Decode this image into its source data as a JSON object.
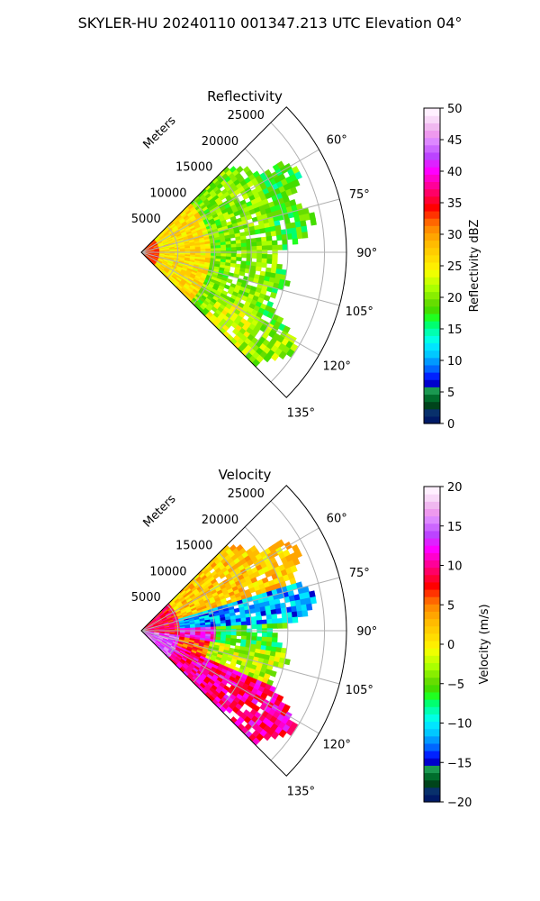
{
  "figure": {
    "suptitle": "SKYLER-HU  20240110  001347.213 UTC Elevation 04°"
  },
  "chart_data": [
    {
      "type": "heatmap",
      "subtype": "polar-sector-ppi",
      "title": "Reflectivity",
      "radial_axis_label": "Meters",
      "radial_ticks": [
        "5000",
        "10000",
        "15000",
        "20000",
        "25000"
      ],
      "radial_tick_values": [
        5000,
        10000,
        15000,
        20000,
        25000
      ],
      "rlim": [
        0,
        28000
      ],
      "angle_ticks": [
        "60°",
        "75°",
        "90°",
        "105°",
        "120°",
        "135°"
      ],
      "angle_tick_values": [
        60,
        75,
        90,
        105,
        120,
        135
      ],
      "theta_range_deg": [
        45,
        135
      ],
      "grid": true,
      "colorbar": {
        "label": "Reflectivity dBZ",
        "ticks": [
          "0",
          "5",
          "10",
          "15",
          "20",
          "25",
          "30",
          "35",
          "40",
          "45",
          "50"
        ],
        "tick_values": [
          0,
          5,
          10,
          15,
          20,
          25,
          30,
          35,
          40,
          45,
          50
        ],
        "vmin": 0,
        "vmax": 50,
        "colors": [
          "#001a66",
          "#08306b",
          "#00441b",
          "#006d2c",
          "#1a9850",
          "#0000cc",
          "#0022ff",
          "#0066ff",
          "#0099ff",
          "#00c8ff",
          "#00e5ff",
          "#00ffe5",
          "#00ffb0",
          "#00ff70",
          "#20ff20",
          "#44dd00",
          "#66dd00",
          "#88ee00",
          "#aaff00",
          "#ccff00",
          "#eeff00",
          "#ffee00",
          "#ffdd00",
          "#ffcc00",
          "#ffbb00",
          "#ffa500",
          "#ff8c00",
          "#ff6600",
          "#ff3300",
          "#ff0000",
          "#ff0033",
          "#ff0066",
          "#ff0099",
          "#ff00cc",
          "#ff00ff",
          "#dd22ff",
          "#bb44ff",
          "#cc66ff",
          "#dd88ff",
          "#ee99ee",
          "#f0b8f0",
          "#f8d8f8",
          "#fff0ff"
        ]
      },
      "field_description_values": {
        "near_range_core_dbz": 35,
        "inner_band_dbz": 26,
        "outer_band_dbz": 20,
        "edge_dbz": 17,
        "max_echo_range_m": 23500
      }
    },
    {
      "type": "heatmap",
      "subtype": "polar-sector-ppi",
      "title": "Velocity",
      "radial_axis_label": "Meters",
      "radial_ticks": [
        "5000",
        "10000",
        "15000",
        "20000",
        "25000"
      ],
      "radial_tick_values": [
        5000,
        10000,
        15000,
        20000,
        25000
      ],
      "rlim": [
        0,
        28000
      ],
      "angle_ticks": [
        "60°",
        "75°",
        "90°",
        "105°",
        "120°",
        "135°"
      ],
      "angle_tick_values": [
        60,
        75,
        90,
        105,
        120,
        135
      ],
      "theta_range_deg": [
        45,
        135
      ],
      "grid": true,
      "colorbar": {
        "label": "Velocity (m/s)",
        "ticks": [
          "−20",
          "−15",
          "−10",
          "−5",
          "0",
          "5",
          "10",
          "15",
          "20"
        ],
        "tick_values": [
          -20,
          -15,
          -10,
          -5,
          0,
          5,
          10,
          15,
          20
        ],
        "vmin": -20,
        "vmax": 20,
        "colors": [
          "#001a66",
          "#08306b",
          "#00441b",
          "#006d2c",
          "#1a9850",
          "#0000cc",
          "#0022ff",
          "#0066ff",
          "#0099ff",
          "#00c8ff",
          "#00e5ff",
          "#00ffe5",
          "#00ffb0",
          "#00ff70",
          "#20ff20",
          "#44dd00",
          "#66dd00",
          "#88ee00",
          "#aaff00",
          "#ccff00",
          "#eeff00",
          "#ffee00",
          "#ffdd00",
          "#ffcc00",
          "#ffbb00",
          "#ffa500",
          "#ff8c00",
          "#ff6600",
          "#ff3300",
          "#ff0000",
          "#ff0033",
          "#ff0066",
          "#ff0099",
          "#ff00cc",
          "#ff00ff",
          "#dd22ff",
          "#bb44ff",
          "#cc66ff",
          "#dd88ff",
          "#ee99ee",
          "#f0b8f0",
          "#f8d8f8",
          "#fff0ff"
        ]
      },
      "field_description_values": {
        "north_sector_velocity_ms": 2,
        "east_north_band_velocity_ms": -12,
        "near_band_velocity_ms": 12,
        "south_sector_velocity_ms": 10,
        "max_echo_range_m": 23500
      }
    }
  ]
}
